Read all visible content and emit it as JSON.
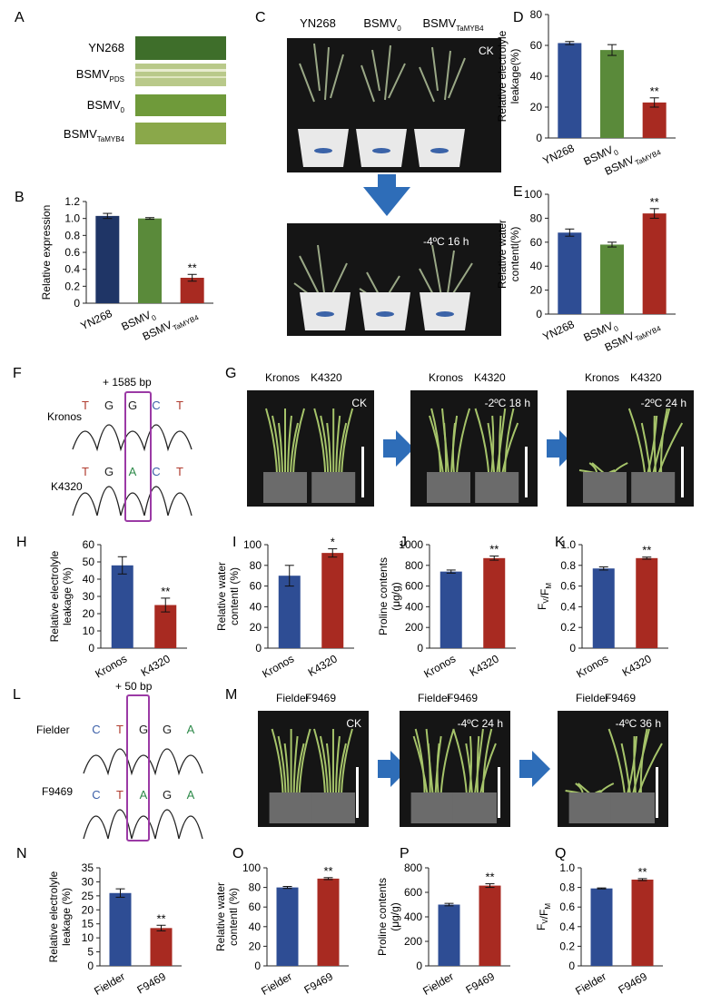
{
  "colors": {
    "navy": "#1f3566",
    "blue": "#2e4d94",
    "green": "#5a8a3a",
    "red": "#a82a21",
    "arrow": "#2e6db8",
    "trace_black": "#222222",
    "trace_red": "#b03b2e",
    "trace_blue": "#3b5fa8",
    "trace_green": "#2e8a4a",
    "highlight": "#9b3aa5"
  },
  "panels": {
    "A": {
      "label": "A",
      "rows": [
        {
          "main": "YN268",
          "sub": ""
        },
        {
          "main": "BSMV",
          "sub": "PDS"
        },
        {
          "main": "BSMV",
          "sub": "0"
        },
        {
          "main": "BSMV",
          "sub": "TaMYB4"
        }
      ]
    },
    "B": {
      "label": "B"
    },
    "C": {
      "label": "C",
      "columns": [
        {
          "main": "YN268",
          "sub": ""
        },
        {
          "main": "BSMV",
          "sub": "0"
        },
        {
          "main": "BSMV",
          "sub": "TaMYB4"
        }
      ],
      "top_tag": "CK",
      "bottom_tag": "-4ºC 16 h"
    },
    "D": {
      "label": "D"
    },
    "E": {
      "label": "E"
    },
    "F": {
      "label": "F",
      "insert": "+ 1585 bp",
      "rows": [
        {
          "name": "Kronos",
          "bases": [
            "T",
            "G",
            "G",
            "C",
            "T"
          ]
        },
        {
          "name": "K4320",
          "bases": [
            "T",
            "G",
            "A",
            "C",
            "T"
          ]
        }
      ]
    },
    "G": {
      "label": "G",
      "photos": [
        {
          "left": "Kronos",
          "right": "K4320",
          "tag": "CK"
        },
        {
          "left": "Kronos",
          "right": "K4320",
          "tag": "-2ºC 18 h"
        },
        {
          "left": "Kronos",
          "right": "K4320",
          "tag": "-2ºC 24 h"
        }
      ]
    },
    "L": {
      "label": "L",
      "insert": "+ 50 bp",
      "rows": [
        {
          "name": "Fielder",
          "bases": [
            "C",
            "T",
            "G",
            "G",
            "A"
          ]
        },
        {
          "name": "F9469",
          "bases": [
            "C",
            "T",
            "A",
            "G",
            "A"
          ]
        }
      ]
    },
    "M": {
      "label": "M",
      "photos": [
        {
          "left": "Fielder",
          "right": "F9469",
          "tag": "CK"
        },
        {
          "left": "Fielder",
          "right": "F9469",
          "tag": "-4ºC 24 h"
        },
        {
          "left": "Fielder",
          "right": "F9469",
          "tag": "-4ºC 36 h"
        }
      ]
    }
  },
  "chart_data": [
    {
      "id": "B",
      "type": "bar",
      "title": "",
      "ylabel": "Relative expression",
      "ylim": [
        0,
        1.2
      ],
      "ticks": [
        "0",
        "0.2",
        "0.4",
        "0.6",
        "0.8",
        "1.0",
        "1.2"
      ],
      "categories": [
        {
          "main": "YN268",
          "sub": ""
        },
        {
          "main": "BSMV",
          "sub": "0"
        },
        {
          "main": "BSMV",
          "sub": "TaMYB4"
        }
      ],
      "values": [
        1.03,
        1.0,
        0.3
      ],
      "errors": [
        0.03,
        0.01,
        0.04
      ],
      "marks": [
        "",
        "",
        "**"
      ],
      "colors": [
        "navy",
        "green",
        "red"
      ]
    },
    {
      "id": "D",
      "type": "bar",
      "title": "",
      "ylabel": "Relative electrolyle leakage(%)",
      "ylim": [
        0,
        80
      ],
      "ticks": [
        "0",
        "20",
        "40",
        "60",
        "80"
      ],
      "categories": [
        {
          "main": "YN268",
          "sub": ""
        },
        {
          "main": "BSMV",
          "sub": "0"
        },
        {
          "main": "BSMV",
          "sub": "TaMYB4"
        }
      ],
      "values": [
        61.5,
        57,
        23
      ],
      "errors": [
        1,
        3.5,
        3
      ],
      "marks": [
        "",
        "",
        "**"
      ],
      "colors": [
        "blue",
        "green",
        "red"
      ]
    },
    {
      "id": "E",
      "type": "bar",
      "title": "",
      "ylabel": "Relative water contentl(%)",
      "ylim": [
        0,
        100
      ],
      "ticks": [
        "0",
        "20",
        "40",
        "60",
        "80",
        "100"
      ],
      "categories": [
        {
          "main": "YN268",
          "sub": ""
        },
        {
          "main": "BSMV",
          "sub": "0"
        },
        {
          "main": "BSMV",
          "sub": "TaMYB4"
        }
      ],
      "values": [
        68,
        58,
        84
      ],
      "errors": [
        3,
        2,
        4
      ],
      "marks": [
        "",
        "",
        "**"
      ],
      "colors": [
        "blue",
        "green",
        "red"
      ]
    },
    {
      "id": "H",
      "type": "bar",
      "title": "",
      "ylabel": "Relative electrolyle leakage (%)",
      "ylim": [
        0,
        60
      ],
      "ticks": [
        "0",
        "10",
        "20",
        "30",
        "40",
        "50",
        "60"
      ],
      "categories": [
        {
          "main": "Kronos",
          "sub": ""
        },
        {
          "main": "K4320",
          "sub": ""
        }
      ],
      "values": [
        48,
        25
      ],
      "errors": [
        5,
        4
      ],
      "marks": [
        "",
        "**"
      ],
      "colors": [
        "blue",
        "red"
      ]
    },
    {
      "id": "I",
      "type": "bar",
      "title": "",
      "ylabel": "Relative water contentl (%)",
      "ylim": [
        0,
        100
      ],
      "ticks": [
        "0",
        "20",
        "40",
        "60",
        "80",
        "100"
      ],
      "categories": [
        {
          "main": "Kronos",
          "sub": ""
        },
        {
          "main": "K4320",
          "sub": ""
        }
      ],
      "values": [
        70,
        92
      ],
      "errors": [
        10,
        4
      ],
      "marks": [
        "",
        "*"
      ],
      "colors": [
        "blue",
        "red"
      ]
    },
    {
      "id": "J",
      "type": "bar",
      "title": "",
      "ylabel": "Proline contents (μg/g)",
      "ylim": [
        0,
        1000
      ],
      "ticks": [
        "0",
        "200",
        "400",
        "600",
        "800",
        "1000"
      ],
      "categories": [
        {
          "main": "Kronos",
          "sub": ""
        },
        {
          "main": "K4320",
          "sub": ""
        }
      ],
      "values": [
        740,
        870
      ],
      "errors": [
        15,
        20
      ],
      "marks": [
        "",
        "**"
      ],
      "colors": [
        "blue",
        "red"
      ]
    },
    {
      "id": "K",
      "type": "bar",
      "title": "",
      "ylabel": "F_V/F_M",
      "ylim": [
        0,
        1.0
      ],
      "ticks": [
        "0",
        "0.2",
        "0.4",
        "0.6",
        "0.8",
        "1.0"
      ],
      "categories": [
        {
          "main": "Kronos",
          "sub": ""
        },
        {
          "main": "K4320",
          "sub": ""
        }
      ],
      "values": [
        0.77,
        0.87
      ],
      "errors": [
        0.015,
        0.01
      ],
      "marks": [
        "",
        "**"
      ],
      "colors": [
        "blue",
        "red"
      ]
    },
    {
      "id": "N",
      "type": "bar",
      "title": "",
      "ylabel": "Relative electrolyle leakage (%)",
      "ylim": [
        0,
        35
      ],
      "ticks": [
        "0",
        "5",
        "10",
        "15",
        "20",
        "25",
        "30",
        "35"
      ],
      "categories": [
        {
          "main": "Fielder",
          "sub": ""
        },
        {
          "main": "F9469",
          "sub": ""
        }
      ],
      "values": [
        26,
        13.5
      ],
      "errors": [
        1.5,
        1
      ],
      "marks": [
        "",
        "**"
      ],
      "colors": [
        "blue",
        "red"
      ]
    },
    {
      "id": "O",
      "type": "bar",
      "title": "",
      "ylabel": "Relative water contentl (%)",
      "ylim": [
        0,
        100
      ],
      "ticks": [
        "0",
        "20",
        "40",
        "60",
        "80",
        "100"
      ],
      "categories": [
        {
          "main": "Fielder",
          "sub": ""
        },
        {
          "main": "F9469",
          "sub": ""
        }
      ],
      "values": [
        80,
        89
      ],
      "errors": [
        1,
        1
      ],
      "marks": [
        "",
        "**"
      ],
      "colors": [
        "blue",
        "red"
      ]
    },
    {
      "id": "P",
      "type": "bar",
      "title": "",
      "ylabel": "Proline contents (μg/g)",
      "ylim": [
        0,
        800
      ],
      "ticks": [
        "0",
        "200",
        "400",
        "600",
        "800"
      ],
      "categories": [
        {
          "main": "Fielder",
          "sub": ""
        },
        {
          "main": "F9469",
          "sub": ""
        }
      ],
      "values": [
        500,
        655
      ],
      "errors": [
        10,
        15
      ],
      "marks": [
        "",
        "**"
      ],
      "colors": [
        "blue",
        "red"
      ]
    },
    {
      "id": "Q",
      "type": "bar",
      "title": "",
      "ylabel": "F_V/F_M",
      "ylim": [
        0,
        1.0
      ],
      "ticks": [
        "0",
        "0.2",
        "0.4",
        "0.6",
        "0.8",
        "1.0"
      ],
      "categories": [
        {
          "main": "Fielder",
          "sub": ""
        },
        {
          "main": "F9469",
          "sub": ""
        }
      ],
      "values": [
        0.79,
        0.88
      ],
      "errors": [
        0.005,
        0.01
      ],
      "marks": [
        "",
        "**"
      ],
      "colors": [
        "blue",
        "red"
      ]
    }
  ]
}
